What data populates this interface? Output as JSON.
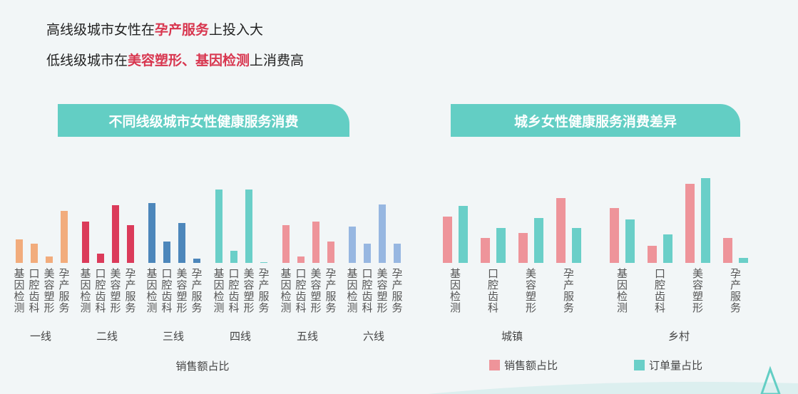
{
  "headline1": {
    "pre": "高线级城市女性在",
    "highlight": "孕产服务",
    "post": "上投入大"
  },
  "headline2": {
    "pre": "低线级城市在",
    "highlight": "美容塑形、基因检测",
    "post": "上消费高"
  },
  "banner_left": "不同线级城市女性健康服务消费",
  "banner_right": "城乡女性健康服务消费差异",
  "chart_data": [
    {
      "type": "bar",
      "title": "不同线级城市女性健康服务消费",
      "categories": [
        "基因检测",
        "口腔齿科",
        "美容塑形",
        "孕产服务"
      ],
      "groups": [
        "一线",
        "二线",
        "三线",
        "四线",
        "五线",
        "六线"
      ],
      "group_colors": [
        "#f2ac7c",
        "#db3b5a",
        "#4d87bb",
        "#6acfc8",
        "#ee949a",
        "#97b7e1"
      ],
      "values": [
        [
          33,
          27,
          9,
          73
        ],
        [
          58,
          13,
          81,
          53
        ],
        [
          84,
          30,
          56,
          6
        ],
        [
          103,
          17,
          103,
          1
        ],
        [
          53,
          9,
          58,
          30
        ],
        [
          51,
          27,
          82,
          27
        ]
      ],
      "xlabel": "销售额占比"
    },
    {
      "type": "bar",
      "title": "城乡女性健康服务消费差异",
      "categories": [
        "基因检测",
        "口腔齿科",
        "美容塑形",
        "孕产服务"
      ],
      "groups": [
        "城镇",
        "乡村"
      ],
      "series": [
        {
          "name": "销售额占比",
          "color": "#ee949a"
        },
        {
          "name": "订单量占比",
          "color": "#6acfc8"
        }
      ],
      "values": [
        [
          [
            65,
            80
          ],
          [
            35,
            49
          ],
          [
            42,
            63
          ],
          [
            91,
            49
          ]
        ],
        [
          [
            77,
            61
          ],
          [
            24,
            40
          ],
          [
            111,
            119
          ],
          [
            35,
            7
          ]
        ]
      ]
    }
  ]
}
